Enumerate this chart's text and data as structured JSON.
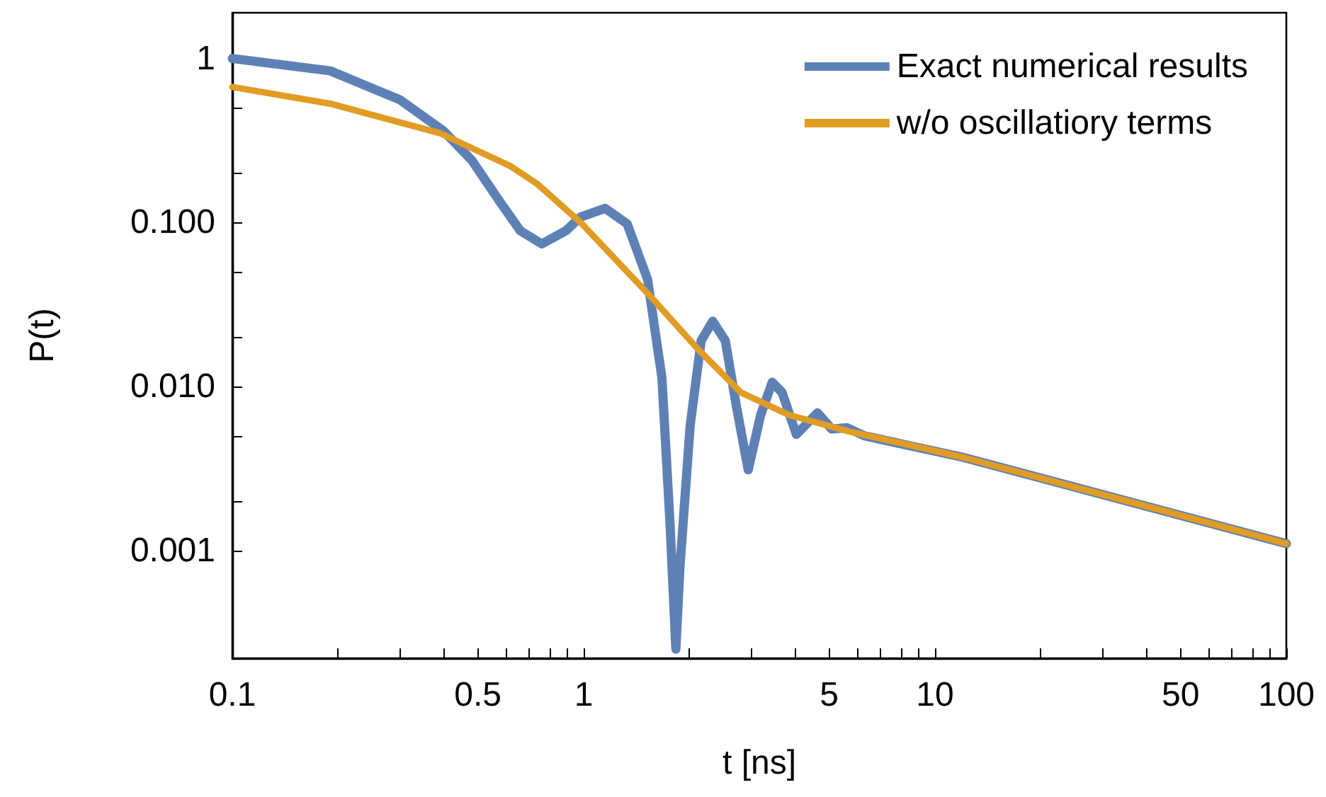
{
  "chart_data": {
    "type": "line",
    "xlabel": "t [ns]",
    "ylabel": "P(t)",
    "log": "xy",
    "grid": false,
    "legend": "top right",
    "marker": "none",
    "line_style": "solid",
    "xlim": [
      0.1,
      100
    ],
    "ylim": [
      0.00022,
      1.9
    ],
    "xticks": [
      0.1,
      {
        "value": 0.2,
        "label": null
      },
      {
        "value": 0.3,
        "label": null
      },
      {
        "value": 0.4,
        "label": null
      },
      0.5,
      {
        "value": 0.6,
        "label": null
      },
      {
        "value": 0.7,
        "label": null
      },
      {
        "value": 0.8,
        "label": null
      },
      {
        "value": 0.9,
        "label": null
      },
      1,
      {
        "value": 2,
        "label": null
      },
      {
        "value": 3,
        "label": null
      },
      {
        "value": 4,
        "label": null
      },
      5,
      {
        "value": 6,
        "label": null
      },
      {
        "value": 7,
        "label": null
      },
      {
        "value": 8,
        "label": null
      },
      {
        "value": 9,
        "label": null
      },
      10,
      {
        "value": 20,
        "label": null
      },
      {
        "value": 30,
        "label": null
      },
      {
        "value": 40,
        "label": null
      },
      50,
      {
        "value": 60,
        "label": null
      },
      {
        "value": 70,
        "label": null
      },
      {
        "value": 80,
        "label": null
      },
      {
        "value": 90,
        "label": null
      },
      100
    ],
    "yticks": [
      {
        "value": 0.001,
        "label": "0.001"
      },
      {
        "value": 0.002,
        "label": null
      },
      {
        "value": 0.005,
        "label": null
      },
      {
        "value": 0.01,
        "label": "0.010"
      },
      {
        "value": 0.02,
        "label": null
      },
      {
        "value": 0.05,
        "label": null
      },
      {
        "value": 0.1,
        "label": "0.100"
      },
      {
        "value": 0.2,
        "label": null
      },
      {
        "value": 0.5,
        "label": null
      },
      1
    ],
    "series": [
      {
        "name": "Exact numerical results",
        "color": "#5e81b5",
        "x": [
          0.1,
          0.19,
          0.3,
          0.4,
          0.48,
          0.58,
          0.66,
          0.76,
          0.89,
          0.98,
          1.15,
          1.33,
          1.52,
          1.67,
          1.76,
          1.83,
          1.88,
          2.01,
          2.16,
          2.33,
          2.53,
          2.72,
          2.94,
          3.19,
          3.44,
          3.67,
          4.03,
          4.63,
          5.08,
          5.62,
          6.29,
          12,
          100
        ],
        "values": [
          1.0,
          0.84,
          0.56,
          0.36,
          0.24,
          0.132,
          0.089,
          0.074,
          0.089,
          0.108,
          0.122,
          0.098,
          0.045,
          0.0113,
          0.0015,
          0.00025,
          0.0008,
          0.0058,
          0.019,
          0.025,
          0.019,
          0.0076,
          0.0031,
          0.0067,
          0.0106,
          0.0092,
          0.0051,
          0.0069,
          0.0055,
          0.0056,
          0.005,
          0.0037,
          0.0011
        ]
      },
      {
        "name": "w/o oscillatiory terms",
        "color": "#e19c24",
        "x": [
          0.1,
          0.19,
          0.39,
          0.62,
          0.74,
          0.89,
          0.98,
          1.52,
          2.12,
          2.8,
          3.84,
          5.73,
          12,
          100
        ],
        "values": [
          0.67,
          0.53,
          0.35,
          0.22,
          0.171,
          0.12,
          0.1,
          0.037,
          0.0168,
          0.0092,
          0.0067,
          0.0053,
          0.0037,
          0.0011
        ]
      }
    ]
  }
}
